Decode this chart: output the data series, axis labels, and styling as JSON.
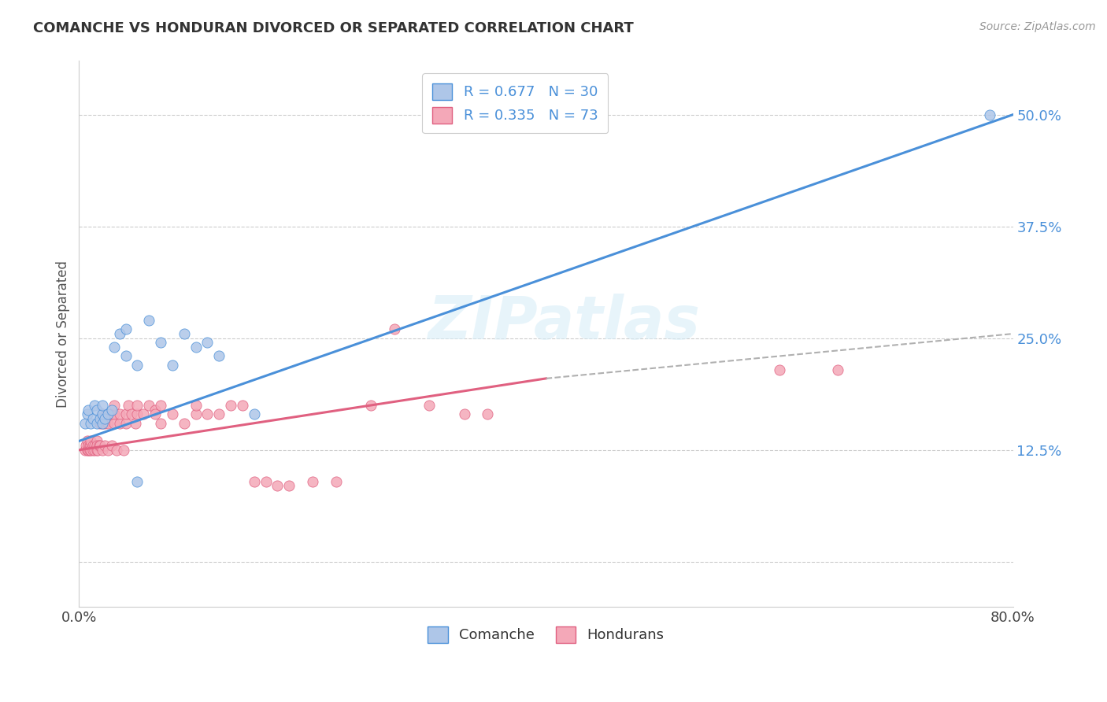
{
  "title": "COMANCHE VS HONDURAN DIVORCED OR SEPARATED CORRELATION CHART",
  "source": "Source: ZipAtlas.com",
  "ylabel": "Divorced or Separated",
  "xmin": 0.0,
  "xmax": 0.8,
  "ymin": -0.05,
  "ymax": 0.56,
  "yticks": [
    0.0,
    0.125,
    0.25,
    0.375,
    0.5
  ],
  "ytick_labels": [
    "",
    "12.5%",
    "25.0%",
    "37.5%",
    "50.0%"
  ],
  "xticks": [
    0.0,
    0.2,
    0.4,
    0.6,
    0.8
  ],
  "xtick_labels": [
    "0.0%",
    "",
    "",
    "",
    "80.0%"
  ],
  "comanche_R": 0.677,
  "comanche_N": 30,
  "honduran_R": 0.335,
  "honduran_N": 73,
  "comanche_color": "#aec6e8",
  "honduran_color": "#f4a8b8",
  "comanche_line_color": "#4a90d9",
  "honduran_line_color": "#e06080",
  "watermark": "ZIPatlas",
  "background_color": "#ffffff",
  "grid_color": "#cccccc",
  "comanche_line": [
    [
      0.0,
      0.135
    ],
    [
      0.8,
      0.5
    ]
  ],
  "honduran_line_solid": [
    [
      0.0,
      0.125
    ],
    [
      0.4,
      0.205
    ]
  ],
  "honduran_line_dashed": [
    [
      0.4,
      0.205
    ],
    [
      0.8,
      0.255
    ]
  ],
  "comanche_scatter": [
    [
      0.005,
      0.155
    ],
    [
      0.007,
      0.165
    ],
    [
      0.008,
      0.17
    ],
    [
      0.01,
      0.155
    ],
    [
      0.012,
      0.16
    ],
    [
      0.013,
      0.175
    ],
    [
      0.015,
      0.155
    ],
    [
      0.015,
      0.17
    ],
    [
      0.018,
      0.16
    ],
    [
      0.02,
      0.155
    ],
    [
      0.02,
      0.165
    ],
    [
      0.02,
      0.175
    ],
    [
      0.022,
      0.16
    ],
    [
      0.025,
      0.165
    ],
    [
      0.028,
      0.17
    ],
    [
      0.03,
      0.24
    ],
    [
      0.035,
      0.255
    ],
    [
      0.04,
      0.26
    ],
    [
      0.04,
      0.23
    ],
    [
      0.05,
      0.22
    ],
    [
      0.06,
      0.27
    ],
    [
      0.07,
      0.245
    ],
    [
      0.08,
      0.22
    ],
    [
      0.09,
      0.255
    ],
    [
      0.1,
      0.24
    ],
    [
      0.11,
      0.245
    ],
    [
      0.12,
      0.23
    ],
    [
      0.05,
      0.09
    ],
    [
      0.15,
      0.165
    ],
    [
      0.78,
      0.5
    ]
  ],
  "honduran_scatter": [
    [
      0.005,
      0.125
    ],
    [
      0.006,
      0.13
    ],
    [
      0.007,
      0.125
    ],
    [
      0.007,
      0.135
    ],
    [
      0.008,
      0.13
    ],
    [
      0.008,
      0.125
    ],
    [
      0.009,
      0.13
    ],
    [
      0.009,
      0.125
    ],
    [
      0.01,
      0.13
    ],
    [
      0.01,
      0.125
    ],
    [
      0.01,
      0.135
    ],
    [
      0.012,
      0.13
    ],
    [
      0.012,
      0.125
    ],
    [
      0.013,
      0.13
    ],
    [
      0.013,
      0.125
    ],
    [
      0.015,
      0.135
    ],
    [
      0.015,
      0.125
    ],
    [
      0.015,
      0.13
    ],
    [
      0.016,
      0.125
    ],
    [
      0.017,
      0.13
    ],
    [
      0.018,
      0.155
    ],
    [
      0.018,
      0.13
    ],
    [
      0.02,
      0.125
    ],
    [
      0.02,
      0.155
    ],
    [
      0.02,
      0.165
    ],
    [
      0.022,
      0.13
    ],
    [
      0.022,
      0.155
    ],
    [
      0.025,
      0.125
    ],
    [
      0.025,
      0.155
    ],
    [
      0.025,
      0.165
    ],
    [
      0.028,
      0.13
    ],
    [
      0.028,
      0.165
    ],
    [
      0.03,
      0.155
    ],
    [
      0.03,
      0.165
    ],
    [
      0.03,
      0.175
    ],
    [
      0.032,
      0.125
    ],
    [
      0.035,
      0.155
    ],
    [
      0.035,
      0.165
    ],
    [
      0.038,
      0.125
    ],
    [
      0.04,
      0.155
    ],
    [
      0.04,
      0.165
    ],
    [
      0.042,
      0.175
    ],
    [
      0.045,
      0.165
    ],
    [
      0.048,
      0.155
    ],
    [
      0.05,
      0.165
    ],
    [
      0.05,
      0.175
    ],
    [
      0.055,
      0.165
    ],
    [
      0.06,
      0.175
    ],
    [
      0.065,
      0.17
    ],
    [
      0.065,
      0.165
    ],
    [
      0.07,
      0.175
    ],
    [
      0.07,
      0.155
    ],
    [
      0.08,
      0.165
    ],
    [
      0.09,
      0.155
    ],
    [
      0.1,
      0.165
    ],
    [
      0.1,
      0.175
    ],
    [
      0.11,
      0.165
    ],
    [
      0.12,
      0.165
    ],
    [
      0.13,
      0.175
    ],
    [
      0.14,
      0.175
    ],
    [
      0.15,
      0.09
    ],
    [
      0.16,
      0.09
    ],
    [
      0.17,
      0.085
    ],
    [
      0.18,
      0.085
    ],
    [
      0.2,
      0.09
    ],
    [
      0.22,
      0.09
    ],
    [
      0.25,
      0.175
    ],
    [
      0.27,
      0.26
    ],
    [
      0.3,
      0.175
    ],
    [
      0.33,
      0.165
    ],
    [
      0.35,
      0.165
    ],
    [
      0.6,
      0.215
    ],
    [
      0.65,
      0.215
    ]
  ]
}
